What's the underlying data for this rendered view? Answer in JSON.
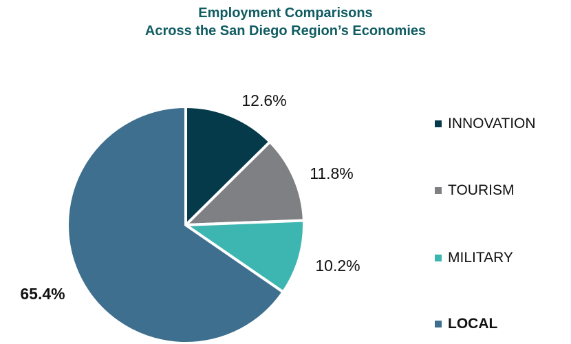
{
  "chart_data": {
    "type": "pie",
    "title": "Employment Comparisons",
    "subtitle": "Across the San Diego Region’s Economies",
    "categories": [
      "INNOVATION",
      "TOURISM",
      "MILITARY",
      "LOCAL"
    ],
    "values": [
      12.6,
      11.8,
      10.2,
      65.4
    ],
    "value_labels": [
      "12.6%",
      "11.8%",
      "10.2%",
      "65.4%"
    ],
    "colors": [
      "#053a4b",
      "#7f8083",
      "#3db5b0",
      "#3e6f8e"
    ],
    "start_angle": "12 o'clock",
    "direction": "clockwise",
    "legend_position": "right",
    "emphasized_category": "LOCAL"
  }
}
